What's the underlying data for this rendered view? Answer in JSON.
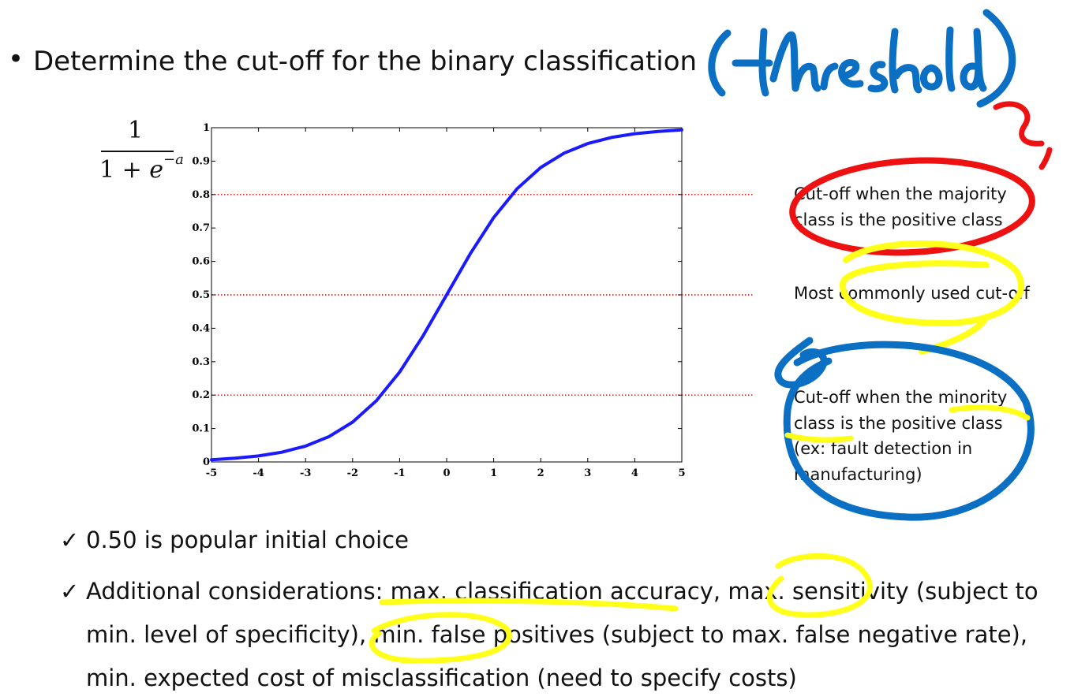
{
  "slide": {
    "bullet": "•",
    "title": "Determine the cut-off for the binary classification",
    "formula": {
      "numerator": "1",
      "denominator_prefix": "1 + ",
      "denominator_base": "e",
      "denominator_exponent": "−a"
    },
    "annotations": {
      "majority": {
        "line1": "Cut-off when the majority",
        "line2": "class is the positive class"
      },
      "common": {
        "line1": "Most commonly used cut-off"
      },
      "minority": {
        "line1": "Cut-off when the minority",
        "line2": "class is the positive class",
        "line3": "(ex: fault detection in",
        "line4": "manufacturing)"
      }
    },
    "checks": {
      "mark": "✓",
      "item1": "0.50 is popular initial choice",
      "item2": "Additional considerations: max. classification accuracy, max. sensitivity (subject to min. level of specificity), min. false positives (subject to max. false negative rate), min. expected cost of misclassification (need to specify costs)"
    },
    "handwriting": {
      "text": "(threshold)",
      "note": "?,",
      "colors": {
        "blue": "#0b6fc4",
        "red": "#ee1111",
        "yellow": "#ffff1a"
      }
    }
  },
  "chart_data": {
    "type": "line",
    "function": "1/(1+e^-a)",
    "xlim": [
      -5,
      5
    ],
    "ylim": [
      0,
      1
    ],
    "x_ticks": [
      "-5",
      "-4",
      "-3",
      "-2",
      "-1",
      "0",
      "1",
      "2",
      "3",
      "4",
      "5"
    ],
    "y_ticks": [
      "0",
      "0.1",
      "0.2",
      "0.3",
      "0.4",
      "0.5",
      "0.6",
      "0.7",
      "0.8",
      "0.9",
      "1"
    ],
    "series": [
      {
        "color": "#1a1aff",
        "x": [
          -5,
          -4.5,
          -4,
          -3.5,
          -3,
          -2.5,
          -2,
          -1.5,
          -1,
          -0.5,
          0,
          0.5,
          1,
          1.5,
          2,
          2.5,
          3,
          3.5,
          4,
          4.5,
          5
        ],
        "y": [
          0.0067,
          0.011,
          0.018,
          0.0293,
          0.0474,
          0.0759,
          0.1192,
          0.1824,
          0.2689,
          0.3775,
          0.5,
          0.6225,
          0.7311,
          0.8176,
          0.8808,
          0.9241,
          0.9526,
          0.9707,
          0.982,
          0.989,
          0.9933
        ]
      }
    ],
    "reference_lines": {
      "color": "#dd0000",
      "style": "dotted",
      "y": [
        0.2,
        0.5,
        0.8
      ]
    },
    "grid": false,
    "xlabel": "",
    "ylabel": ""
  }
}
